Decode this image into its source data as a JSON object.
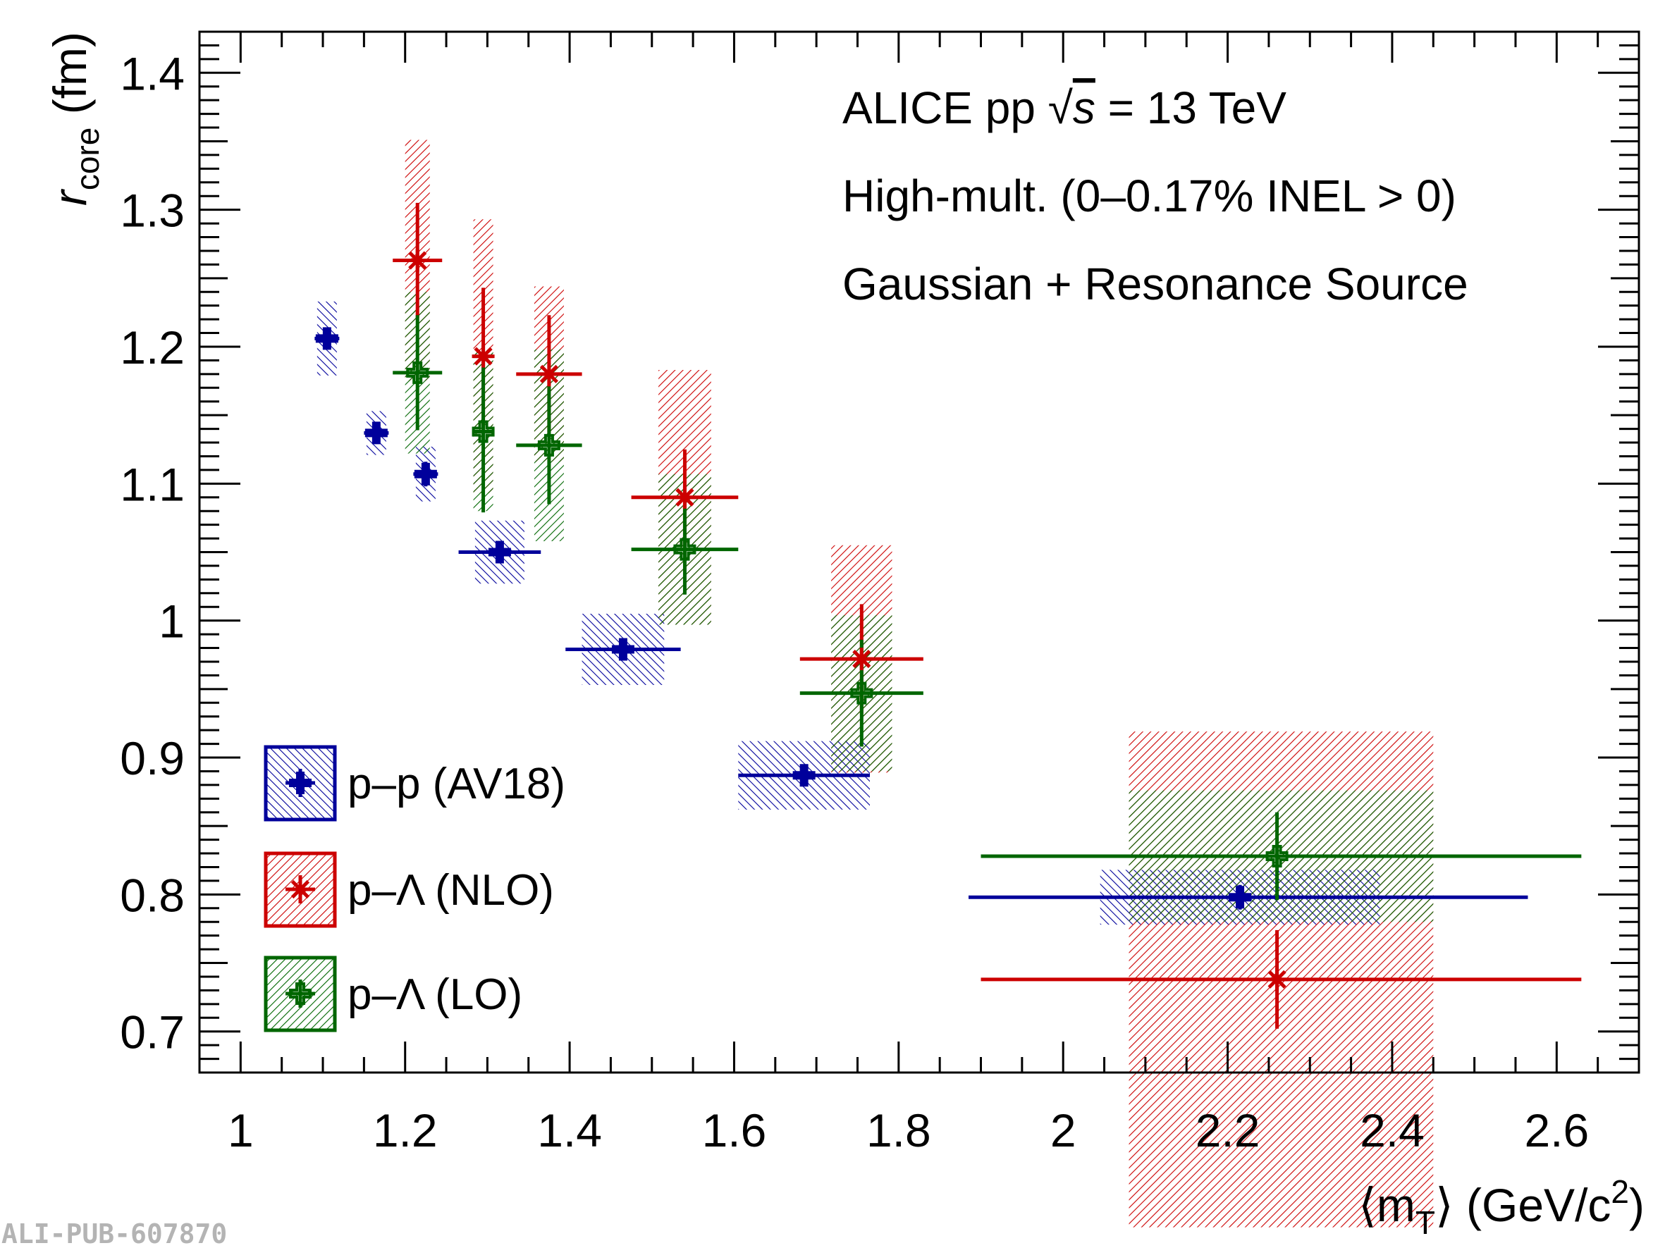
{
  "chart_data": {
    "type": "scatter",
    "xlabel_parts": [
      "⟨m",
      "T",
      "⟩ (GeV/c",
      "2",
      ")"
    ],
    "ylabel_parts": [
      "r",
      "core",
      " (fm)"
    ],
    "xlim": [
      0.95,
      2.7
    ],
    "ylim": [
      0.67,
      1.43
    ],
    "x_ticks": [
      1,
      1.2,
      1.4,
      1.6,
      1.8,
      2,
      2.2,
      2.4,
      2.6
    ],
    "x_tick_labels": [
      "1",
      "1.2",
      "1.4",
      "1.6",
      "1.8",
      "2",
      "2.2",
      "2.4",
      "2.6"
    ],
    "y_ticks": [
      0.7,
      0.8,
      0.9,
      1.0,
      1.1,
      1.2,
      1.3,
      1.4
    ],
    "y_tick_labels": [
      "0.7",
      "0.8",
      "0.9",
      "1",
      "1.1",
      "1.2",
      "1.3",
      "1.4"
    ],
    "annotations": [
      "ALICE pp √s = 13 TeV",
      "High-mult. (0–0.17% INEL > 0)",
      "Gaussian + Resonance Source"
    ],
    "annotation_parts": {
      "line1_a": "ALICE pp ",
      "line1_b": "s",
      "line1_c": " = 13 TeV"
    },
    "grid": false,
    "legend_position": "bottom-left",
    "series": [
      {
        "name": "p–p (AV18)",
        "color": "#00009b",
        "marker": "cross",
        "points": [
          {
            "x": 1.105,
            "y": 1.206,
            "xerr": 0.015,
            "yerr": 0.006,
            "sys_w": 0.012,
            "sys_err": 0.027
          },
          {
            "x": 1.165,
            "y": 1.137,
            "xerr": 0.015,
            "yerr": 0.006,
            "sys_w": 0.012,
            "sys_err": 0.016
          },
          {
            "x": 1.225,
            "y": 1.107,
            "xerr": 0.015,
            "yerr": 0.009,
            "sys_w": 0.012,
            "sys_err": 0.02
          },
          {
            "x": 1.315,
            "y": 1.05,
            "xerr": 0.05,
            "yerr": 0.007,
            "sys_w": 0.03,
            "sys_err": 0.023
          },
          {
            "x": 1.465,
            "y": 0.979,
            "xerr": 0.07,
            "yerr": 0.008,
            "sys_w": 0.05,
            "sys_err": 0.026
          },
          {
            "x": 1.685,
            "y": 0.887,
            "xerr": 0.08,
            "yerr": 0.007,
            "sys_w": 0.08,
            "sys_err": 0.025
          },
          {
            "x": 2.215,
            "y": 0.798,
            "xerr_lo": 0.33,
            "xerr_hi": 0.35,
            "yerr": 0.009,
            "sys_lo": 0.17,
            "sys_hi": 0.17,
            "sys_err": 0.02
          }
        ]
      },
      {
        "name": "p–Λ (NLO)",
        "color": "#cc0000",
        "marker": "star",
        "points": [
          {
            "x": 1.215,
            "y": 1.263,
            "xerr": 0.03,
            "yerr": 0.042,
            "sys_w": 0.015,
            "sys_err": 0.088
          },
          {
            "x": 1.295,
            "y": 1.193,
            "xerr": 0.012,
            "yerr": 0.05,
            "sys_w": 0.012,
            "sys_err": 0.1
          },
          {
            "x": 1.375,
            "y": 1.18,
            "xerr": 0.04,
            "yerr": 0.043,
            "sys_w": 0.018,
            "sys_err": 0.064
          },
          {
            "x": 1.54,
            "y": 1.09,
            "xerr": 0.065,
            "yerr": 0.035,
            "sys_w": 0.032,
            "sys_err": 0.093
          },
          {
            "x": 1.755,
            "y": 0.972,
            "xerr": 0.075,
            "yerr": 0.04,
            "sys_w": 0.037,
            "sys_err": 0.083
          },
          {
            "x": 2.26,
            "y": 0.738,
            "xerr_lo": 0.36,
            "xerr_hi": 0.37,
            "yerr": 0.036,
            "sys_lo": 0.18,
            "sys_hi": 0.19,
            "sys_err": 0.181
          }
        ]
      },
      {
        "name": "p–Λ (LO)",
        "color": "#006600",
        "marker": "open-cross",
        "points": [
          {
            "x": 1.215,
            "y": 1.181,
            "xerr": 0.03,
            "yerr": 0.042,
            "sys_w": 0.015,
            "sys_err": 0.059
          },
          {
            "x": 1.295,
            "y": 1.138,
            "xerr": 0.012,
            "yerr": 0.059,
            "sys_w": 0.012,
            "sys_err": 0.058
          },
          {
            "x": 1.375,
            "y": 1.128,
            "xerr": 0.04,
            "yerr": 0.043,
            "sys_w": 0.018,
            "sys_err": 0.07
          },
          {
            "x": 1.54,
            "y": 1.052,
            "xerr": 0.065,
            "yerr": 0.033,
            "sys_w": 0.032,
            "sys_err": 0.055
          },
          {
            "x": 1.755,
            "y": 0.947,
            "xerr": 0.075,
            "yerr": 0.039,
            "sys_w": 0.037,
            "sys_err": 0.057
          },
          {
            "x": 2.26,
            "y": 0.828,
            "xerr_lo": 0.36,
            "xerr_hi": 0.37,
            "yerr": 0.032,
            "sys_lo": 0.18,
            "sys_hi": 0.19,
            "sys_err": 0.048
          }
        ]
      }
    ]
  },
  "watermark": "ALI-PUB-607870"
}
